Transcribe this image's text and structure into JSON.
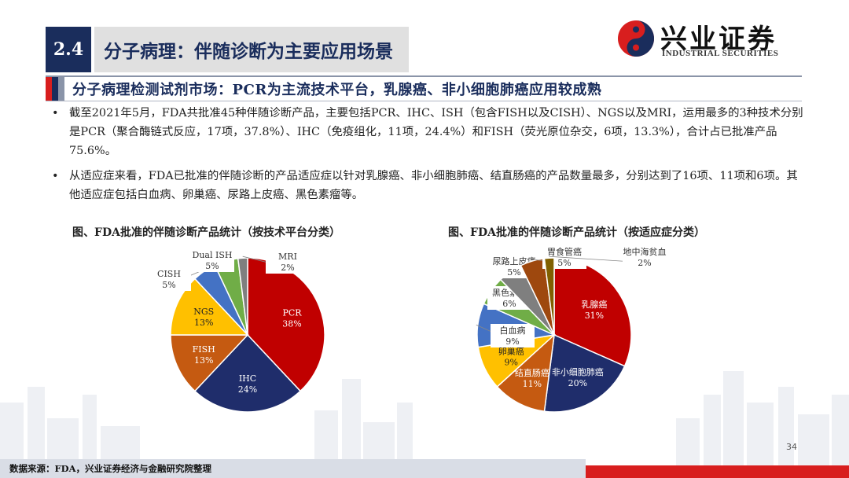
{
  "header": {
    "section_number": "2.4",
    "section_title": "分子病理：伴随诊断为主要应用场景",
    "logo_cn": "兴业证券",
    "logo_en": "INDUSTRIAL SECURITIES"
  },
  "subtitle": "分子病理检测试剂市场：PCR为主流技术平台，乳腺癌、非小细胞肺癌应用较成熟",
  "bullets": [
    "截至2021年5月，FDA共批准45种伴随诊断产品，主要包括PCR、IHC、ISH（包含FISH以及CISH）、NGS以及MRI，运用最多的3种技术分别是PCR（聚合酶链式反应，17项，37.8%）、IHC（免疫组化，11项，24.4%）和FISH（荧光原位杂交，6项，13.3%），合计占已批准产品75.6%。",
    "从适应症来看，FDA已批准的伴随诊断的产品适应症以针对乳腺癌、非小细胞肺癌、结直肠癌的产品数量最多，分别达到了16项、11项和6项。其他适应症包括白血病、卵巢癌、尿路上皮癌、黑色素瘤等。"
  ],
  "bullet_glyph": "•",
  "colors": {
    "navy": "#1a2d5c",
    "red": "#d81e1e",
    "accent_bars": [
      "#d81e1e",
      "#1a2d5c",
      "#8a94a8"
    ]
  },
  "chart_data": [
    {
      "type": "pie",
      "title": "图、FDA批准的伴随诊断产品统计（按技术平台分类）",
      "slices": [
        {
          "label": "PCR",
          "pct": "38%",
          "value": 38,
          "color": "#c00000",
          "inside": true
        },
        {
          "label": "IHC",
          "pct": "24%",
          "value": 24,
          "color": "#1f2d6b",
          "inside": true
        },
        {
          "label": "FISH",
          "pct": "13%",
          "value": 13,
          "color": "#c55a11",
          "inside": true
        },
        {
          "label": "NGS",
          "pct": "13%",
          "value": 13,
          "color": "#ffc000",
          "inside": true
        },
        {
          "label": "CISH",
          "pct": "5%",
          "value": 5,
          "color": "#4472c4",
          "inside": false
        },
        {
          "label": "Dual ISH",
          "pct": "5%",
          "value": 5,
          "color": "#70ad47",
          "inside": false
        },
        {
          "label": "MRI",
          "pct": "2%",
          "value": 2,
          "color": "#7f7f7f",
          "inside": false
        }
      ]
    },
    {
      "type": "pie",
      "title": "图、FDA批准的伴随诊断产品统计（按适应症分类）",
      "slices": [
        {
          "label": "乳腺癌",
          "pct": "31%",
          "value": 31,
          "color": "#c00000",
          "inside": true
        },
        {
          "label": "非小细胞肺癌",
          "pct": "20%",
          "value": 20,
          "color": "#1f2d6b",
          "inside": true
        },
        {
          "label": "结直肠癌",
          "pct": "11%",
          "value": 11,
          "color": "#c55a11",
          "inside": true
        },
        {
          "label": "卵巢癌",
          "pct": "9%",
          "value": 9,
          "color": "#ffc000",
          "inside": true
        },
        {
          "label": "白血病",
          "pct": "9%",
          "value": 9,
          "color": "#4472c4",
          "inside": false
        },
        {
          "label": "黑色素瘤",
          "pct": "6%",
          "value": 6,
          "color": "#70ad47",
          "inside": false
        },
        {
          "label": "尿路上皮癌",
          "pct": "5%",
          "value": 5,
          "color": "#7f7f7f",
          "inside": false
        },
        {
          "label": "胃食管癌",
          "pct": "5%",
          "value": 5,
          "color": "#9e480e",
          "inside": false
        },
        {
          "label": "地中海贫血",
          "pct": "2%",
          "value": 2,
          "color": "#806000",
          "inside": false
        }
      ]
    }
  ],
  "page_number": "34",
  "source": "数据来源：FDA，兴业证券经济与金融研究院整理"
}
